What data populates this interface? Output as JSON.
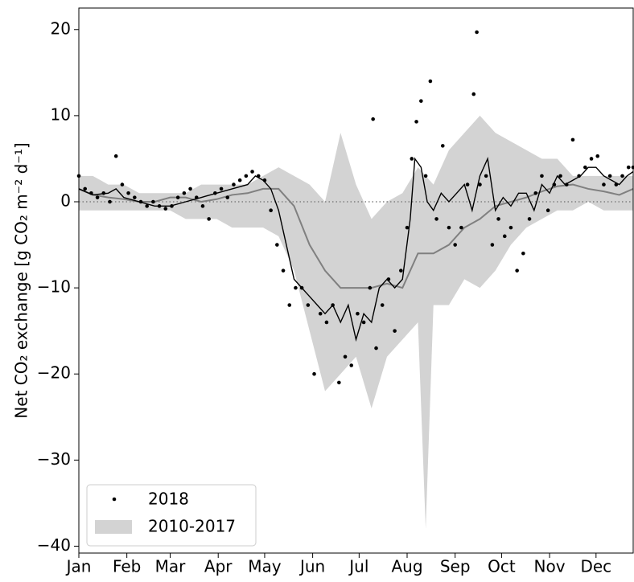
{
  "chart_data": {
    "type": "scatter",
    "ylabel": "Net CO₂ exchange [g CO₂ m⁻² d⁻¹]",
    "xlim": [
      1,
      359
    ],
    "ylim": [
      -40.8,
      22.5
    ],
    "xticks": [
      {
        "value": 1,
        "label": "Jan"
      },
      {
        "value": 32,
        "label": "Feb"
      },
      {
        "value": 60,
        "label": "Mar"
      },
      {
        "value": 91,
        "label": "Apr"
      },
      {
        "value": 121,
        "label": "May"
      },
      {
        "value": 152,
        "label": "Jun"
      },
      {
        "value": 182,
        "label": "Jul"
      },
      {
        "value": 213,
        "label": "Aug"
      },
      {
        "value": 244,
        "label": "Sep"
      },
      {
        "value": 274,
        "label": "Oct"
      },
      {
        "value": 305,
        "label": "Nov"
      },
      {
        "value": 335,
        "label": "Dec"
      }
    ],
    "yticks": [
      {
        "value": -40,
        "label": "−40"
      },
      {
        "value": -30,
        "label": "−30"
      },
      {
        "value": -20,
        "label": "−20"
      },
      {
        "value": -10,
        "label": "−10"
      },
      0,
      10,
      20
    ],
    "hline": 0,
    "band": {
      "name": "2010-2017",
      "color": "#d3d3d3",
      "x": [
        1,
        10,
        20,
        30,
        40,
        50,
        60,
        70,
        80,
        90,
        100,
        110,
        120,
        130,
        140,
        150,
        160,
        170,
        180,
        190,
        200,
        210,
        220,
        225,
        230,
        240,
        250,
        260,
        270,
        280,
        290,
        300,
        310,
        320,
        330,
        340,
        350,
        359
      ],
      "lower": [
        -1,
        -1,
        -1,
        -1,
        -1,
        -1,
        -1,
        -2,
        -2,
        -2,
        -3,
        -3,
        -3,
        -4,
        -8,
        -15,
        -22,
        -20,
        -18,
        -24,
        -18,
        -16,
        -14,
        -38,
        -12,
        -12,
        -9,
        -10,
        -8,
        -5,
        -3,
        -2,
        -1,
        -1,
        0,
        -1,
        -1,
        -1
      ],
      "upper": [
        3,
        3,
        2,
        2,
        1,
        1,
        1,
        1,
        2,
        2,
        2,
        2,
        3,
        4,
        3,
        2,
        0,
        8,
        2,
        -2,
        0,
        1,
        4,
        3,
        2,
        6,
        8,
        10,
        8,
        7,
        6,
        5,
        5,
        3,
        3,
        3,
        3,
        3
      ]
    },
    "lines": [
      {
        "color": "#808080",
        "x": [
          1,
          10,
          20,
          30,
          40,
          50,
          60,
          70,
          80,
          90,
          100,
          110,
          120,
          130,
          140,
          150,
          160,
          170,
          180,
          190,
          200,
          210,
          220,
          230,
          240,
          250,
          260,
          270,
          280,
          290,
          300,
          310,
          320,
          330,
          340,
          350,
          359
        ],
        "values": [
          1.5,
          0.8,
          0.5,
          0.3,
          0,
          0,
          0.5,
          0.5,
          0,
          0.3,
          0.8,
          1,
          1.5,
          1.5,
          -0.5,
          -5,
          -8,
          -10,
          -10,
          -10,
          -9.5,
          -10,
          -6,
          -6,
          -5,
          -3,
          -2,
          -0.5,
          0,
          0.5,
          1.2,
          1.8,
          2,
          1.5,
          1.2,
          0.8,
          1.5
        ]
      },
      {
        "color": "#000000",
        "x": [
          1,
          10,
          20,
          25,
          30,
          40,
          50,
          60,
          70,
          80,
          90,
          100,
          110,
          115,
          120,
          125,
          130,
          135,
          140,
          145,
          150,
          155,
          160,
          165,
          170,
          175,
          180,
          185,
          190,
          195,
          200,
          205,
          210,
          215,
          218,
          222,
          226,
          230,
          235,
          240,
          245,
          250,
          255,
          260,
          265,
          270,
          275,
          280,
          285,
          290,
          295,
          300,
          305,
          310,
          315,
          320,
          325,
          330,
          335,
          340,
          345,
          350,
          355,
          359
        ],
        "values": [
          1.5,
          0.8,
          1,
          1.5,
          0.5,
          0,
          -0.5,
          -0.5,
          0,
          0.5,
          1,
          1.5,
          2,
          3,
          2.5,
          1.5,
          -1,
          -5,
          -9,
          -10,
          -11,
          -12,
          -13,
          -12,
          -14,
          -12,
          -16,
          -13,
          -14,
          -10,
          -9,
          -10,
          -9,
          -2,
          5,
          4,
          0,
          -1,
          1,
          0,
          1,
          2,
          -1,
          3,
          5,
          -1,
          0.5,
          -0.5,
          1,
          1,
          -1,
          2,
          1,
          3,
          2,
          2.5,
          3,
          4,
          4,
          3,
          2.5,
          2,
          3,
          3.5
        ]
      }
    ],
    "series": [
      {
        "name": "2018",
        "color": "#000000",
        "x": [
          1,
          5,
          9,
          13,
          17,
          21,
          25,
          29,
          33,
          37,
          41,
          45,
          49,
          53,
          57,
          61,
          65,
          69,
          73,
          77,
          81,
          85,
          89,
          93,
          97,
          101,
          105,
          109,
          113,
          117,
          121,
          125,
          129,
          133,
          137,
          141,
          145,
          149,
          153,
          157,
          161,
          165,
          169,
          173,
          177,
          181,
          185,
          189,
          191,
          193,
          197,
          201,
          205,
          209,
          213,
          216,
          219,
          222,
          225,
          228,
          232,
          236,
          240,
          244,
          248,
          252,
          256,
          258,
          260,
          264,
          268,
          272,
          276,
          280,
          284,
          288,
          292,
          296,
          300,
          304,
          308,
          312,
          316,
          320,
          324,
          328,
          332,
          336,
          340,
          344,
          348,
          352,
          356,
          359
        ],
        "values": [
          3,
          1.5,
          1,
          0.5,
          1,
          0,
          5.3,
          2,
          1,
          0.5,
          0,
          -0.5,
          0,
          -0.5,
          -0.8,
          -0.5,
          0.5,
          1,
          1.5,
          0.5,
          -0.5,
          -2,
          1,
          1.5,
          0.5,
          2,
          2.5,
          3,
          3.5,
          3,
          2.5,
          -1,
          -5,
          -8,
          -12,
          -10,
          -10,
          -12,
          -20,
          -13,
          -14,
          -12,
          -21,
          -18,
          -19,
          -13,
          -14,
          -10,
          9.6,
          -17,
          -12,
          -9,
          -15,
          -8,
          -3,
          5,
          9.3,
          11.7,
          3,
          14,
          -2,
          6.5,
          -3,
          -5,
          -3,
          2,
          12.5,
          19.7,
          2,
          3,
          -5,
          -2,
          -4,
          -3,
          -8,
          -6,
          -2,
          1,
          3,
          -1,
          2,
          3,
          2,
          7.2,
          3,
          4,
          5,
          5.3,
          2,
          3,
          2,
          3,
          4,
          4
        ]
      }
    ]
  }
}
